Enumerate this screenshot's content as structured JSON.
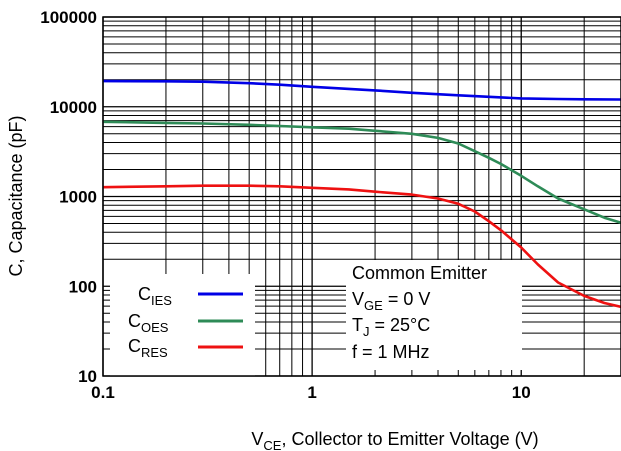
{
  "chart_data": {
    "type": "line",
    "xscale": "log",
    "yscale": "log",
    "xlim": [
      0.1,
      30
    ],
    "ylim": [
      10,
      100000
    ],
    "grid": true,
    "x_ticks": [
      {
        "value": 0.1,
        "label": "0.1"
      },
      {
        "value": 1,
        "label": "1"
      },
      {
        "value": 10,
        "label": "10"
      }
    ],
    "y_ticks": [
      {
        "value": 10,
        "label": "10"
      },
      {
        "value": 100,
        "label": "100"
      },
      {
        "value": 1000,
        "label": "1000"
      },
      {
        "value": 10000,
        "label": "10000"
      },
      {
        "value": 100000,
        "label": "100000"
      }
    ],
    "xlabel": {
      "main": "V",
      "sub": "CE",
      "rest": ", Collector to Emitter Voltage (V)"
    },
    "ylabel": "C, Capacitance (pF)",
    "legend_position": "bottom-left",
    "series": [
      {
        "name": {
          "main": "C",
          "sub": "IES"
        },
        "color": "#0000e6",
        "points": [
          [
            0.1,
            19300
          ],
          [
            0.2,
            19200
          ],
          [
            0.3,
            19000
          ],
          [
            0.5,
            18300
          ],
          [
            0.7,
            17600
          ],
          [
            1,
            16700
          ],
          [
            2,
            15200
          ],
          [
            3,
            14300
          ],
          [
            5,
            13400
          ],
          [
            7,
            12900
          ],
          [
            10,
            12400
          ],
          [
            15,
            12200
          ],
          [
            20,
            12100
          ],
          [
            30,
            12050
          ]
        ]
      },
      {
        "name": {
          "main": "C",
          "sub": "OES"
        },
        "color": "#2e8b57",
        "points": [
          [
            0.1,
            6800
          ],
          [
            0.2,
            6600
          ],
          [
            0.3,
            6500
          ],
          [
            0.5,
            6300
          ],
          [
            0.7,
            6100
          ],
          [
            1,
            5900
          ],
          [
            1.5,
            5700
          ],
          [
            2,
            5400
          ],
          [
            3,
            5000
          ],
          [
            4,
            4500
          ],
          [
            5,
            3900
          ],
          [
            6,
            3200
          ],
          [
            7,
            2700
          ],
          [
            8,
            2300
          ],
          [
            10,
            1700
          ],
          [
            12,
            1300
          ],
          [
            15,
            950
          ],
          [
            20,
            720
          ],
          [
            25,
            580
          ],
          [
            30,
            510
          ]
        ]
      },
      {
        "name": {
          "main": "C",
          "sub": "RES"
        },
        "color": "#ee1111",
        "points": [
          [
            0.1,
            1270
          ],
          [
            0.2,
            1300
          ],
          [
            0.3,
            1320
          ],
          [
            0.5,
            1320
          ],
          [
            0.7,
            1300
          ],
          [
            1,
            1250
          ],
          [
            1.5,
            1200
          ],
          [
            2,
            1130
          ],
          [
            3,
            1050
          ],
          [
            4,
            950
          ],
          [
            5,
            830
          ],
          [
            6,
            680
          ],
          [
            7,
            530
          ],
          [
            8,
            420
          ],
          [
            10,
            270
          ],
          [
            12,
            175
          ],
          [
            15,
            110
          ],
          [
            20,
            78
          ],
          [
            25,
            65
          ],
          [
            30,
            59
          ]
        ]
      }
    ],
    "annotation": {
      "line1": "Common Emitter",
      "line2_pre": "V",
      "line2_sub": "GE",
      "line2_post": " = 0 V",
      "line3_pre": "T",
      "line3_sub": "J",
      "line3_post": " = 25°C",
      "line4": "f = 1 MHz"
    }
  }
}
